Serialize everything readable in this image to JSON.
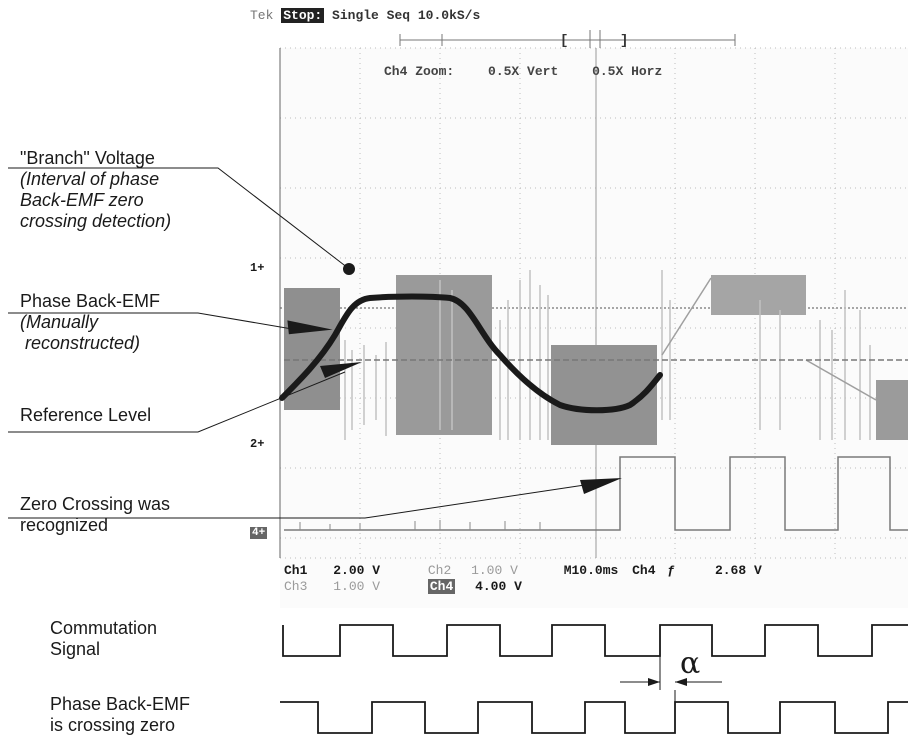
{
  "scope": {
    "header": {
      "brand": "Tek",
      "state": "Stop:",
      "mode": "Single Seq",
      "rate": "10.0kS/s"
    },
    "zoom": {
      "channel": "Ch4 Zoom:",
      "vert": "0.5X Vert",
      "horz": "0.5X Horz"
    },
    "markers": {
      "ch1": "1+",
      "ch2": "2+",
      "ch4": "4+"
    },
    "readout": {
      "ch1_label": "Ch1",
      "ch1_value": "2.00 V",
      "ch2_label": "Ch2",
      "ch2_value": "1.00 V",
      "ch3_label": "Ch3",
      "ch3_value": "1.00 V",
      "ch4_label": "Ch4",
      "ch4_value": "4.00 V",
      "timebase": "M10.0ms",
      "trigger_channel": "Ch4",
      "trigger_slope": "ƒ",
      "trigger_level": "2.68 V"
    }
  },
  "annotations": {
    "branch": {
      "title": "\"Branch\" Voltage",
      "line1": "(Interval of phase",
      "line2": "Back-EMF zero",
      "line3": "crossing detection)"
    },
    "phase": {
      "title": "Phase Back-EMF",
      "line1": "(Manually",
      "line2": " reconstructed)"
    },
    "reference": {
      "title": "Reference Level"
    },
    "zero": {
      "line1": "Zero Crossing was",
      "line2": "recognized"
    }
  },
  "timing": {
    "commutation": {
      "line1": "Commutation",
      "line2": "Signal"
    },
    "crossing": {
      "line1": "Phase Back-EMF",
      "line2": "is crossing zero"
    },
    "alpha": "α"
  }
}
